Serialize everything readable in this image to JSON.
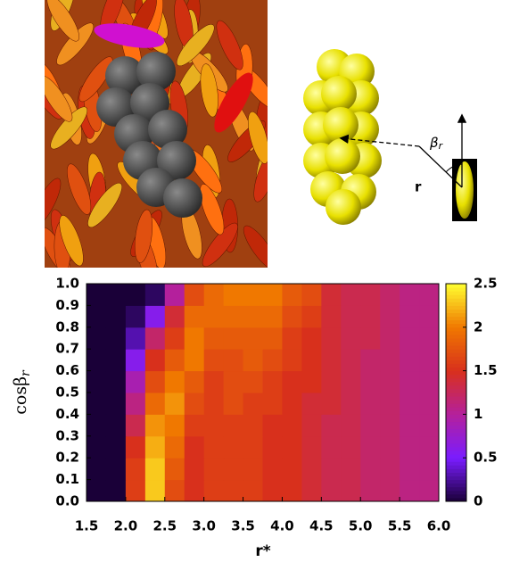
{
  "chart_data": {
    "type": "heatmap",
    "annotations": {
      "beta": "β",
      "beta_sub": "r",
      "r": "r"
    },
    "xlabel": "r*",
    "ylabel": "cosβ",
    "ylabel_sub": "r",
    "xbins": [
      1.5,
      1.75,
      2.0,
      2.25,
      2.5,
      2.75,
      3.0,
      3.25,
      3.5,
      3.75,
      4.0,
      4.25,
      4.5,
      4.75,
      5.0,
      5.25,
      5.5,
      5.75,
      6.0
    ],
    "ybins": [
      0,
      0.1,
      0.2,
      0.3,
      0.4,
      0.5,
      0.6,
      0.7,
      0.8,
      0.9,
      1.0
    ],
    "z": [
      [
        0,
        0,
        1.6,
        2.3,
        1.7,
        1.5,
        1.6,
        1.6,
        1.6,
        1.5,
        1.5,
        1.4,
        1.3,
        1.3,
        1.2,
        1.2,
        1.1,
        1.1
      ],
      [
        0,
        0,
        1.6,
        2.3,
        1.8,
        1.5,
        1.6,
        1.6,
        1.6,
        1.5,
        1.5,
        1.4,
        1.3,
        1.3,
        1.2,
        1.2,
        1.1,
        1.1
      ],
      [
        0,
        0,
        1.5,
        2.2,
        1.9,
        1.5,
        1.6,
        1.6,
        1.6,
        1.5,
        1.5,
        1.4,
        1.3,
        1.3,
        1.2,
        1.2,
        1.1,
        1.1
      ],
      [
        0,
        0,
        1.3,
        2.1,
        2.0,
        1.6,
        1.6,
        1.6,
        1.6,
        1.5,
        1.5,
        1.4,
        1.3,
        1.3,
        1.2,
        1.2,
        1.1,
        1.1
      ],
      [
        0,
        0,
        1.1,
        1.9,
        2.1,
        1.7,
        1.6,
        1.7,
        1.6,
        1.6,
        1.5,
        1.4,
        1.4,
        1.3,
        1.2,
        1.2,
        1.1,
        1.1
      ],
      [
        0,
        0,
        0.9,
        1.7,
        2.0,
        1.8,
        1.6,
        1.7,
        1.7,
        1.6,
        1.5,
        1.5,
        1.4,
        1.3,
        1.2,
        1.2,
        1.1,
        1.1
      ],
      [
        0,
        0,
        0.6,
        1.5,
        1.8,
        2.0,
        1.7,
        1.7,
        1.8,
        1.7,
        1.6,
        1.5,
        1.4,
        1.3,
        1.2,
        1.2,
        1.1,
        1.1
      ],
      [
        0,
        0,
        0.3,
        1.2,
        1.6,
        2.0,
        1.8,
        1.8,
        1.8,
        1.8,
        1.6,
        1.5,
        1.4,
        1.3,
        1.3,
        1.2,
        1.1,
        1.1
      ],
      [
        0,
        0,
        0.1,
        0.6,
        1.4,
        1.9,
        1.9,
        1.9,
        1.9,
        1.9,
        1.7,
        1.6,
        1.4,
        1.3,
        1.3,
        1.2,
        1.1,
        1.1
      ],
      [
        0,
        0,
        0,
        0.1,
        1.0,
        1.7,
        1.9,
        2.0,
        2.0,
        2.0,
        1.8,
        1.7,
        1.4,
        1.3,
        1.3,
        1.2,
        1.1,
        1.1
      ]
    ],
    "xlim": [
      1.5,
      6.0
    ],
    "xticks": [
      1.5,
      {
        "value": 2,
        "label": "2.0"
      },
      2.5,
      {
        "value": 3,
        "label": "3.0"
      },
      3.5,
      {
        "value": 4,
        "label": "4.0"
      },
      4.5,
      {
        "value": 5,
        "label": "5.0"
      },
      5.5,
      {
        "value": 6,
        "label": "6.0"
      }
    ],
    "ylim": [
      0,
      1
    ],
    "yticks": [
      {
        "value": 0,
        "label": "0.0"
      },
      0.1,
      0.2,
      0.3,
      0.4,
      0.5,
      0.6,
      0.7,
      0.8,
      0.9,
      {
        "value": 1,
        "label": "1.0"
      }
    ],
    "zlim": [
      0,
      2.5
    ],
    "zticks": [
      0,
      0.5,
      1,
      1.5,
      2,
      2.5
    ],
    "colormap": [
      "#1a0038",
      "#7a1cff",
      "#b4209c",
      "#d8301c",
      "#f07800",
      "#ffff30"
    ]
  }
}
